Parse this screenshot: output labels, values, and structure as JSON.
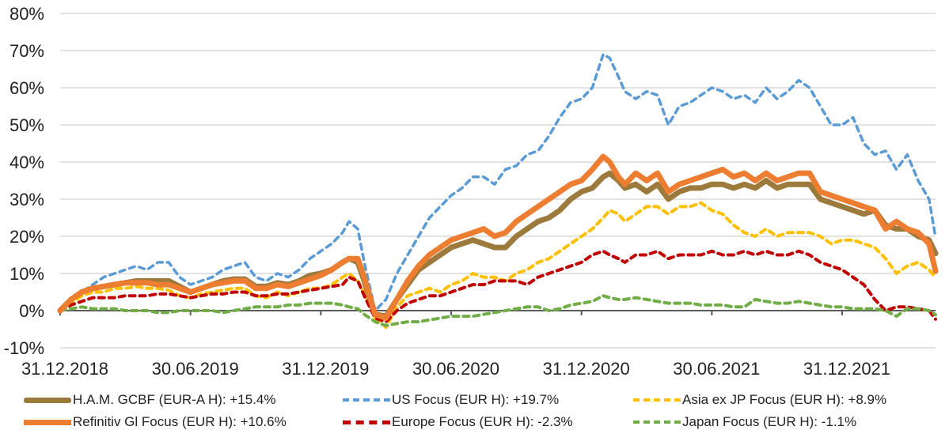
{
  "chart_data": {
    "type": "line",
    "title": "",
    "xlabel": "",
    "ylabel": "",
    "x_unit": "months since 31.12.2018",
    "xlim": [
      0,
      40.3
    ],
    "ylim": [
      -10,
      80
    ],
    "grid": true,
    "legend_position": "bottom",
    "y_ticks": [
      -10,
      0,
      10,
      20,
      30,
      40,
      50,
      60,
      70,
      80
    ],
    "y_tick_labels": [
      "-10%",
      "0%",
      "10%",
      "20%",
      "30%",
      "40%",
      "50%",
      "60%",
      "70%",
      "80%"
    ],
    "x_ticks": [
      0,
      6,
      12,
      18,
      24,
      30,
      36
    ],
    "x_tick_labels": [
      "31.12.2018",
      "30.06.2019",
      "31.12.2019",
      "30.06.2020",
      "31.12.2020",
      "30.06.2021",
      "31.12.2021"
    ],
    "series": [
      {
        "name": "US Focus (EUR H): +19.7%",
        "color": "#5b9bd5",
        "style": "dashed",
        "width": "thin",
        "x": [
          0,
          0.5,
          1,
          1.5,
          2,
          2.5,
          3,
          3.5,
          4,
          4.5,
          5,
          5.5,
          6,
          6.5,
          7,
          7.5,
          8,
          8.5,
          9,
          9.5,
          10,
          10.5,
          11,
          11.5,
          12,
          12.5,
          13,
          13.3,
          13.7,
          14,
          14.5,
          15,
          15.5,
          16,
          16.5,
          17,
          17.5,
          18,
          18.5,
          19,
          19.5,
          20,
          20.5,
          21,
          21.5,
          22,
          22.5,
          23,
          23.5,
          24,
          24.5,
          25,
          25.3,
          25.7,
          26,
          26.5,
          27,
          27.5,
          28,
          28.5,
          29,
          29.5,
          30,
          30.5,
          31,
          31.5,
          32,
          32.5,
          33,
          33.5,
          34,
          34.5,
          35,
          35.5,
          36,
          36.5,
          37,
          37.5,
          38,
          38.5,
          39,
          39.5,
          40,
          40.3
        ],
        "y": [
          0,
          3,
          5,
          7,
          9,
          10,
          11,
          12,
          11,
          13,
          13,
          9,
          7,
          8,
          9,
          11,
          12,
          13,
          9,
          8,
          10,
          9,
          11,
          14,
          16,
          18,
          21,
          24,
          22,
          13,
          0,
          3,
          10,
          15,
          20,
          25,
          28,
          31,
          33,
          36,
          36,
          34,
          38,
          39,
          42,
          43,
          47,
          52,
          56,
          57,
          60,
          69,
          68,
          63,
          59,
          57,
          59,
          58,
          50,
          55,
          56,
          58,
          60,
          59,
          57,
          58,
          56,
          60,
          57,
          59,
          62,
          60,
          55,
          50,
          50,
          52,
          45,
          42,
          43,
          38,
          42,
          35,
          30,
          19.7
        ]
      },
      {
        "name": "H.A.M. GCBF (EUR-A H): +15.4%",
        "color": "#9c7a3c",
        "style": "solid",
        "width": "thick",
        "x": [
          0,
          0.5,
          1,
          1.5,
          2,
          2.5,
          3,
          3.5,
          4,
          4.5,
          5,
          5.5,
          6,
          6.5,
          7,
          7.5,
          8,
          8.5,
          9,
          9.5,
          10,
          10.5,
          11,
          11.5,
          12,
          12.5,
          13,
          13.3,
          13.7,
          14,
          14.5,
          15,
          15.5,
          16,
          16.5,
          17,
          17.5,
          18,
          18.5,
          19,
          19.5,
          20,
          20.5,
          21,
          21.5,
          22,
          22.5,
          23,
          23.5,
          24,
          24.5,
          25,
          25.3,
          25.7,
          26,
          26.5,
          27,
          27.5,
          28,
          28.5,
          29,
          29.5,
          30,
          30.5,
          31,
          31.5,
          32,
          32.5,
          33,
          33.5,
          34,
          34.5,
          35,
          35.5,
          36,
          36.5,
          37,
          37.5,
          38,
          38.5,
          39,
          39.5,
          40,
          40.3
        ],
        "y": [
          0,
          3,
          5,
          6,
          6.5,
          7,
          7.5,
          8,
          8,
          8,
          8,
          6.5,
          5,
          6,
          7,
          8,
          8.5,
          8.5,
          6.5,
          6.5,
          7.5,
          7,
          8,
          9.5,
          10,
          11,
          13,
          14,
          13,
          8,
          -1,
          -1.5,
          3,
          7,
          11,
          13,
          15,
          17,
          18,
          19,
          18,
          17,
          17,
          20,
          22,
          24,
          25,
          27,
          30,
          32,
          33,
          36,
          37,
          35,
          33,
          34,
          32,
          34,
          30,
          32,
          33,
          33,
          34,
          34,
          33,
          34,
          33,
          35,
          33,
          34,
          34,
          34,
          30,
          29,
          28,
          27,
          26,
          27,
          23,
          22,
          22,
          20,
          19,
          15.4
        ]
      },
      {
        "name": "Refinitiv Gl Focus (EUR H): +10.6%",
        "color": "#ed7d31",
        "style": "solid",
        "width": "thick",
        "x": [
          0,
          0.5,
          1,
          1.5,
          2,
          2.5,
          3,
          3.5,
          4,
          4.5,
          5,
          5.5,
          6,
          6.5,
          7,
          7.5,
          8,
          8.5,
          9,
          9.5,
          10,
          10.5,
          11,
          11.5,
          12,
          12.5,
          13,
          13.3,
          13.7,
          14,
          14.5,
          15,
          15.5,
          16,
          16.5,
          17,
          17.5,
          18,
          18.5,
          19,
          19.5,
          20,
          20.5,
          21,
          21.5,
          22,
          22.5,
          23,
          23.5,
          24,
          24.5,
          25,
          25.3,
          25.7,
          26,
          26.5,
          27,
          27.5,
          28,
          28.5,
          29,
          29.5,
          30,
          30.5,
          31,
          31.5,
          32,
          32.5,
          33,
          33.5,
          34,
          34.5,
          35,
          35.5,
          36,
          36.5,
          37,
          37.5,
          38,
          38.5,
          39,
          39.5,
          40,
          40.3
        ],
        "y": [
          0,
          3,
          5,
          6,
          6.5,
          7,
          7.5,
          7.5,
          7.5,
          7,
          7,
          6,
          5,
          6,
          7,
          7.5,
          8,
          8,
          6,
          6,
          7,
          6.5,
          7.5,
          8.5,
          9.5,
          11,
          13,
          14,
          14,
          9,
          -1,
          -2,
          3,
          8,
          12,
          15,
          17,
          19,
          20,
          21,
          22,
          20,
          21,
          24,
          26,
          28,
          30,
          32,
          34,
          35,
          38,
          41.5,
          40,
          36,
          34,
          37,
          35,
          37,
          32,
          34,
          35,
          36,
          37,
          38,
          36,
          37,
          35,
          37,
          35,
          36,
          37,
          37,
          32,
          31,
          30,
          29,
          28,
          27,
          22,
          24,
          22,
          21,
          18,
          10.6
        ]
      },
      {
        "name": "Asia ex JP Focus (EUR H): +8.9%",
        "color": "#ffc000",
        "style": "dashed",
        "width": "medium",
        "x": [
          0,
          0.5,
          1,
          1.5,
          2,
          2.5,
          3,
          3.5,
          4,
          4.5,
          5,
          5.5,
          6,
          6.5,
          7,
          7.5,
          8,
          8.5,
          9,
          9.5,
          10,
          10.5,
          11,
          11.5,
          12,
          12.5,
          13,
          13.3,
          13.7,
          14,
          14.5,
          15,
          15.5,
          16,
          16.5,
          17,
          17.5,
          18,
          18.5,
          19,
          19.5,
          20,
          20.5,
          21,
          21.5,
          22,
          22.5,
          23,
          23.5,
          24,
          24.5,
          25,
          25.3,
          25.7,
          26,
          26.5,
          27,
          27.5,
          28,
          28.5,
          29,
          29.5,
          30,
          30.5,
          31,
          31.5,
          32,
          32.5,
          33,
          33.5,
          34,
          34.5,
          35,
          35.5,
          36,
          36.5,
          37,
          37.5,
          38,
          38.5,
          39,
          39.5,
          40,
          40.3
        ],
        "y": [
          0,
          2,
          4,
          5,
          5,
          6,
          6,
          6.5,
          6,
          6,
          5.5,
          4,
          3.5,
          4.5,
          5,
          5.5,
          6,
          6,
          4,
          3.5,
          5,
          4,
          5,
          6,
          6,
          7,
          9,
          10,
          8,
          5,
          -2,
          -4.5,
          1,
          4,
          5,
          6,
          5,
          7,
          8,
          10,
          9,
          9,
          8,
          10,
          11,
          13,
          14,
          16,
          18,
          20,
          22,
          25,
          27,
          26,
          24,
          26,
          28,
          28,
          26,
          28,
          28,
          29,
          27,
          26,
          23,
          21,
          20,
          22,
          20,
          21,
          21,
          21,
          20,
          18,
          19,
          19,
          18,
          17,
          14,
          10,
          12,
          13,
          11,
          8.9
        ]
      },
      {
        "name": "Europe Focus (EUR H): -2.3%",
        "color": "#c00000",
        "style": "dashed",
        "width": "medium",
        "x": [
          0,
          0.5,
          1,
          1.5,
          2,
          2.5,
          3,
          3.5,
          4,
          4.5,
          5,
          5.5,
          6,
          6.5,
          7,
          7.5,
          8,
          8.5,
          9,
          9.5,
          10,
          10.5,
          11,
          11.5,
          12,
          12.5,
          13,
          13.3,
          13.7,
          14,
          14.5,
          15,
          15.5,
          16,
          16.5,
          17,
          17.5,
          18,
          18.5,
          19,
          19.5,
          20,
          20.5,
          21,
          21.5,
          22,
          22.5,
          23,
          23.5,
          24,
          24.5,
          25,
          25.3,
          25.7,
          26,
          26.5,
          27,
          27.5,
          28,
          28.5,
          29,
          29.5,
          30,
          30.5,
          31,
          31.5,
          32,
          32.5,
          33,
          33.5,
          34,
          34.5,
          35,
          35.5,
          36,
          36.5,
          37,
          37.5,
          38,
          38.5,
          39,
          39.5,
          40,
          40.3
        ],
        "y": [
          0,
          1.5,
          2.5,
          3.5,
          3.5,
          3.5,
          4,
          4,
          4,
          4.5,
          4.5,
          4,
          3.5,
          4,
          4.5,
          4.5,
          5,
          5,
          4,
          4,
          4.5,
          4.5,
          5,
          5.5,
          6,
          6.5,
          7,
          9,
          8,
          4,
          -2,
          -3,
          0,
          2,
          3,
          4,
          4,
          5,
          6,
          7,
          7,
          8,
          8,
          8,
          7,
          9,
          10,
          11,
          12,
          13,
          15,
          16,
          15,
          14,
          13,
          15,
          15,
          16,
          14,
          15,
          15,
          15,
          16,
          15,
          15,
          16,
          15,
          16,
          15,
          15,
          16,
          15,
          13,
          12,
          11,
          9,
          7,
          3,
          0,
          1,
          1,
          0.5,
          0,
          -2.3
        ]
      },
      {
        "name": "Japan Focus (EUR H): -1.1%",
        "color": "#70ad47",
        "style": "dashed",
        "width": "medium",
        "x": [
          0,
          0.5,
          1,
          1.5,
          2,
          2.5,
          3,
          3.5,
          4,
          4.5,
          5,
          5.5,
          6,
          6.5,
          7,
          7.5,
          8,
          8.5,
          9,
          9.5,
          10,
          10.5,
          11,
          11.5,
          12,
          12.5,
          13,
          13.3,
          13.7,
          14,
          14.5,
          15,
          15.5,
          16,
          16.5,
          17,
          17.5,
          18,
          18.5,
          19,
          19.5,
          20,
          20.5,
          21,
          21.5,
          22,
          22.5,
          23,
          23.5,
          24,
          24.5,
          25,
          25.3,
          25.7,
          26,
          26.5,
          27,
          27.5,
          28,
          28.5,
          29,
          29.5,
          30,
          30.5,
          31,
          31.5,
          32,
          32.5,
          33,
          33.5,
          34,
          34.5,
          35,
          35.5,
          36,
          36.5,
          37,
          37.5,
          38,
          38.5,
          39,
          39.5,
          40,
          40.3
        ],
        "y": [
          0,
          0.5,
          1,
          0.5,
          0.5,
          0.5,
          0,
          0,
          0,
          -0.5,
          -0.5,
          0,
          0,
          0,
          0,
          -0.5,
          0,
          0.5,
          1,
          1,
          1,
          1.5,
          1.5,
          2,
          2,
          2,
          1.5,
          1,
          0.5,
          -1,
          -3,
          -4,
          -3.5,
          -3,
          -3,
          -2.5,
          -2,
          -1.5,
          -1.5,
          -1.5,
          -1,
          -0.5,
          0,
          0.5,
          1,
          1,
          0,
          0.5,
          1.5,
          2,
          2.5,
          4,
          3.5,
          3,
          3,
          3.5,
          3,
          2.5,
          2,
          2,
          2,
          1.5,
          1.5,
          1.5,
          1,
          1,
          3,
          2.5,
          2,
          2,
          2.5,
          2,
          1.5,
          1,
          1,
          0.5,
          0.5,
          0.5,
          0,
          -1.5,
          0.5,
          0.5,
          0,
          -1.1
        ]
      }
    ]
  },
  "legend": {
    "items": [
      {
        "label": "H.A.M. GCBF (EUR-A H): +15.4%",
        "color": "#9c7a3c",
        "style": "solid"
      },
      {
        "label": "US Focus (EUR H): +19.7%",
        "color": "#5b9bd5",
        "style": "dashed"
      },
      {
        "label": "Asia ex JP Focus (EUR H): +8.9%",
        "color": "#ffc000",
        "style": "dashed"
      },
      {
        "label": "Refinitiv Gl Focus (EUR H): +10.6%",
        "color": "#ed7d31",
        "style": "solid"
      },
      {
        "label": "Europe Focus (EUR H): -2.3%",
        "color": "#c00000",
        "style": "dashed"
      },
      {
        "label": "Japan Focus (EUR H): -1.1%",
        "color": "#70ad47",
        "style": "dashed"
      }
    ]
  }
}
